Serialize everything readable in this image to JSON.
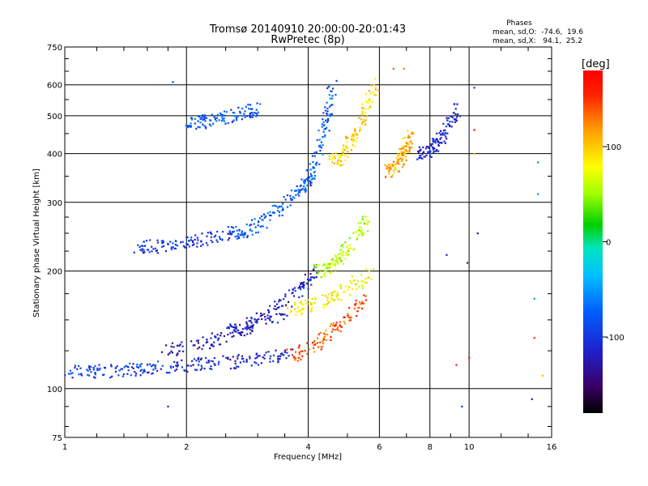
{
  "chart_data": {
    "type": "scatter",
    "title": "Tromsø 20140910 20:00:00-20:01:43",
    "subtitle": "RwPretec (8p)",
    "xlabel": "Frequency [MHz]",
    "ylabel": "Stationary phase Virtual Height [km]",
    "x_scale": "log",
    "y_scale": "log",
    "xlim": [
      1,
      16
    ],
    "ylim": [
      75,
      750
    ],
    "x_ticks": [
      1,
      2,
      4,
      6,
      8,
      10,
      16
    ],
    "x_tick_labels": [
      "1",
      "2",
      "4",
      "6",
      "8",
      "10",
      "16"
    ],
    "y_ticks": [
      75,
      100,
      200,
      300,
      400,
      500,
      600,
      750
    ],
    "y_tick_labels": [
      "75",
      "100",
      "200",
      "300",
      "400",
      "500",
      "600",
      "750"
    ],
    "grid": true,
    "phases_box": {
      "heading": "Phases",
      "line_o": "mean, sd,O:  -74.6,  19.6",
      "line_x": "mean, sd,X:   94.1,  25.2"
    },
    "colorbar": {
      "label": "[deg]",
      "range": [
        -180,
        180
      ],
      "ticks": [
        100,
        0,
        -100
      ],
      "tick_labels": [
        "100",
        "0",
        "-100"
      ]
    },
    "traces": [
      {
        "f0": 1.0,
        "f1": 1.9,
        "h0": 110,
        "h1": 115,
        "phase": -95
      },
      {
        "f0": 1.9,
        "f1": 3.6,
        "h0": 115,
        "h1": 122,
        "phase": -110
      },
      {
        "f0": 3.6,
        "f1": 5.5,
        "h0": 122,
        "h1": 170,
        "phase": 140
      },
      {
        "f0": 1.7,
        "f1": 3.6,
        "h0": 125,
        "h1": 160,
        "phase": -120
      },
      {
        "f0": 3.6,
        "f1": 5.8,
        "h0": 160,
        "h1": 200,
        "phase": 80
      },
      {
        "f0": 2.5,
        "f1": 4.2,
        "h0": 140,
        "h1": 200,
        "phase": -115
      },
      {
        "f0": 4.2,
        "f1": 5.6,
        "h0": 200,
        "h1": 270,
        "phase": 60
      },
      {
        "f0": 1.5,
        "f1": 2.6,
        "h0": 230,
        "h1": 250,
        "phase": -100
      },
      {
        "f0": 2.6,
        "f1": 3.9,
        "h0": 250,
        "h1": 330,
        "phase": -80
      },
      {
        "f0": 3.9,
        "f1": 4.6,
        "h0": 330,
        "h1": 600,
        "phase": -75
      },
      {
        "f0": 4.6,
        "f1": 5.9,
        "h0": 380,
        "h1": 620,
        "phase": 95
      },
      {
        "f0": 6.3,
        "f1": 7.2,
        "h0": 360,
        "h1": 450,
        "phase": 110
      },
      {
        "f0": 7.6,
        "f1": 9.4,
        "h0": 400,
        "h1": 520,
        "phase": -110
      },
      {
        "f0": 2.0,
        "f1": 3.0,
        "h0": 480,
        "h1": 520,
        "phase": -80
      }
    ],
    "points": [
      {
        "x": 1.8,
        "y": 90,
        "phase": -110
      },
      {
        "x": 9.6,
        "y": 90,
        "phase": -100
      },
      {
        "x": 14.3,
        "y": 94,
        "phase": -120
      },
      {
        "x": 15.2,
        "y": 108,
        "phase": 110
      },
      {
        "x": 14.5,
        "y": 135,
        "phase": 150
      },
      {
        "x": 14.5,
        "y": 170,
        "phase": -50
      },
      {
        "x": 9.9,
        "y": 210,
        "phase": -110
      },
      {
        "x": 8.8,
        "y": 220,
        "phase": -110
      },
      {
        "x": 10.5,
        "y": 250,
        "phase": -120
      },
      {
        "x": 14.8,
        "y": 380,
        "phase": -60
      },
      {
        "x": 14.8,
        "y": 315,
        "phase": -50
      },
      {
        "x": 10.3,
        "y": 590,
        "phase": -100
      },
      {
        "x": 10.3,
        "y": 460,
        "phase": 170
      },
      {
        "x": 10.3,
        "y": 400,
        "phase": 110
      },
      {
        "x": 10.0,
        "y": 120,
        "phase": 170
      },
      {
        "x": 9.3,
        "y": 115,
        "phase": 160
      },
      {
        "x": 6.9,
        "y": 660,
        "phase": 130
      },
      {
        "x": 6.5,
        "y": 660,
        "phase": 140
      },
      {
        "x": 1.85,
        "y": 610,
        "phase": -90
      }
    ]
  }
}
